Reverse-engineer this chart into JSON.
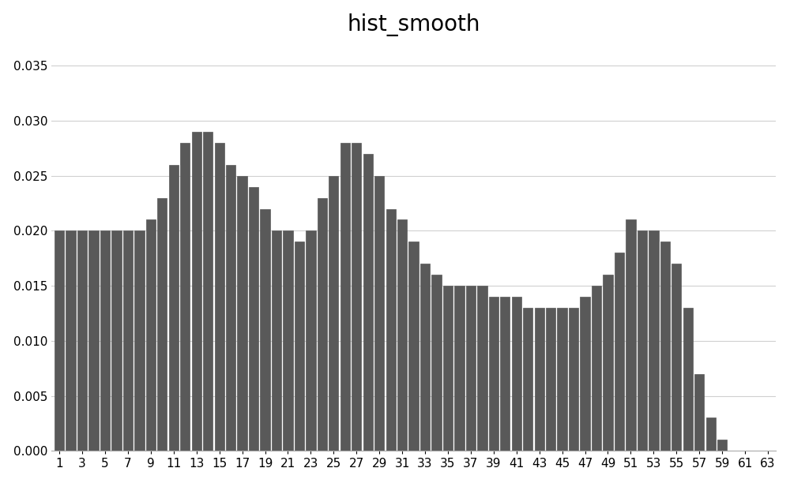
{
  "title": "hist_smooth",
  "bar_color": "#595959",
  "background_color": "#ffffff",
  "grid_color": "#d0d0d0",
  "ylim": [
    0,
    0.037
  ],
  "yticks": [
    0,
    0.005,
    0.01,
    0.015,
    0.02,
    0.025,
    0.03,
    0.035
  ],
  "values": [
    0.02,
    0.02,
    0.02,
    0.02,
    0.02,
    0.02,
    0.02,
    0.02,
    0.021,
    0.023,
    0.026,
    0.028,
    0.029,
    0.029,
    0.028,
    0.026,
    0.025,
    0.024,
    0.022,
    0.02,
    0.02,
    0.019,
    0.02,
    0.023,
    0.025,
    0.028,
    0.028,
    0.027,
    0.025,
    0.022,
    0.021,
    0.019,
    0.017,
    0.016,
    0.015,
    0.015,
    0.015,
    0.015,
    0.014,
    0.014,
    0.014,
    0.013,
    0.013,
    0.013,
    0.013,
    0.013,
    0.014,
    0.015,
    0.016,
    0.018,
    0.021,
    0.02,
    0.02,
    0.019,
    0.017,
    0.013,
    0.007,
    0.003,
    0.001,
    0.0,
    0.0,
    0.0,
    0.0
  ],
  "n_bars": 63,
  "xlabel_step": 2,
  "title_fontsize": 20,
  "tick_fontsize": 11
}
